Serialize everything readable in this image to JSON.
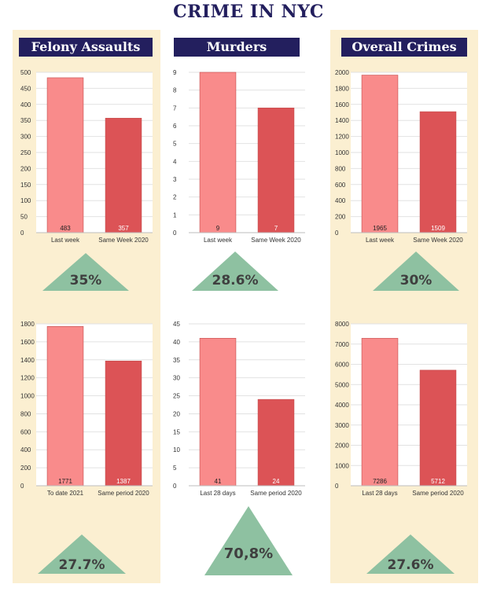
{
  "title": "CRIME IN NYC",
  "colors": {
    "background_column": "#fbefd1",
    "header_bg": "#231f5e",
    "bar_current": "#f98b8b",
    "bar_previous": "#dc5356",
    "triangle": "#8ec1a1",
    "title": "#231f5e"
  },
  "columns": [
    {
      "header": "Felony Assaults"
    },
    {
      "header": "Murders"
    },
    {
      "header": "Overall Crimes"
    }
  ],
  "changes": {
    "felony_week": "35%",
    "murders_week": "28.6%",
    "overall_week": "30%",
    "felony_period": "27.7%",
    "murders_period": "70,8%",
    "overall_period": "27.6%"
  },
  "chart_data": [
    {
      "type": "bar",
      "title": "Felony Assaults",
      "categories": [
        "Last week",
        "Same Week 2020"
      ],
      "values": [
        483,
        357
      ],
      "value_labels": [
        "483",
        "357"
      ],
      "ylim": [
        0,
        500
      ],
      "yticks": [
        0,
        50,
        100,
        150,
        200,
        250,
        300,
        350,
        400,
        450,
        500
      ],
      "grid": true
    },
    {
      "type": "bar",
      "title": "Murders",
      "categories": [
        "Last week",
        "Same Week 2020"
      ],
      "values": [
        9,
        7
      ],
      "value_labels": [
        "9",
        "7"
      ],
      "ylim": [
        0,
        9
      ],
      "yticks": [
        0,
        1,
        2,
        3,
        4,
        5,
        6,
        7,
        8,
        9
      ],
      "grid": true
    },
    {
      "type": "bar",
      "title": "Overall Crimes",
      "categories": [
        "Last week",
        "Same Week 2020"
      ],
      "values": [
        1965,
        1509
      ],
      "value_labels": [
        "1965",
        "1509"
      ],
      "ylim": [
        0,
        2000
      ],
      "yticks": [
        0,
        200,
        400,
        600,
        800,
        1000,
        1200,
        1400,
        1600,
        1800,
        2000
      ],
      "grid": true
    },
    {
      "type": "bar",
      "categories": [
        "To date 2021",
        "Same period 2020"
      ],
      "values": [
        1771,
        1387
      ],
      "value_labels": [
        "1771",
        "1387"
      ],
      "ylim": [
        0,
        1800
      ],
      "yticks": [
        0,
        200,
        400,
        600,
        800,
        1000,
        1200,
        1400,
        1600,
        1800
      ],
      "grid": true
    },
    {
      "type": "bar",
      "categories": [
        "Last 28 days",
        "Same period 2020"
      ],
      "values": [
        41,
        24
      ],
      "value_labels": [
        "41",
        "24"
      ],
      "ylim": [
        0,
        45
      ],
      "yticks": [
        0,
        5,
        10,
        15,
        20,
        25,
        30,
        35,
        40,
        45
      ],
      "grid": true
    },
    {
      "type": "bar",
      "categories": [
        "Last 28 days",
        "Same period 2020"
      ],
      "values": [
        7286,
        5712
      ],
      "value_labels": [
        "7286",
        "5712"
      ],
      "ylim": [
        0,
        8000
      ],
      "yticks": [
        0,
        1000,
        2000,
        3000,
        4000,
        5000,
        6000,
        7000,
        8000
      ],
      "grid": true
    }
  ]
}
